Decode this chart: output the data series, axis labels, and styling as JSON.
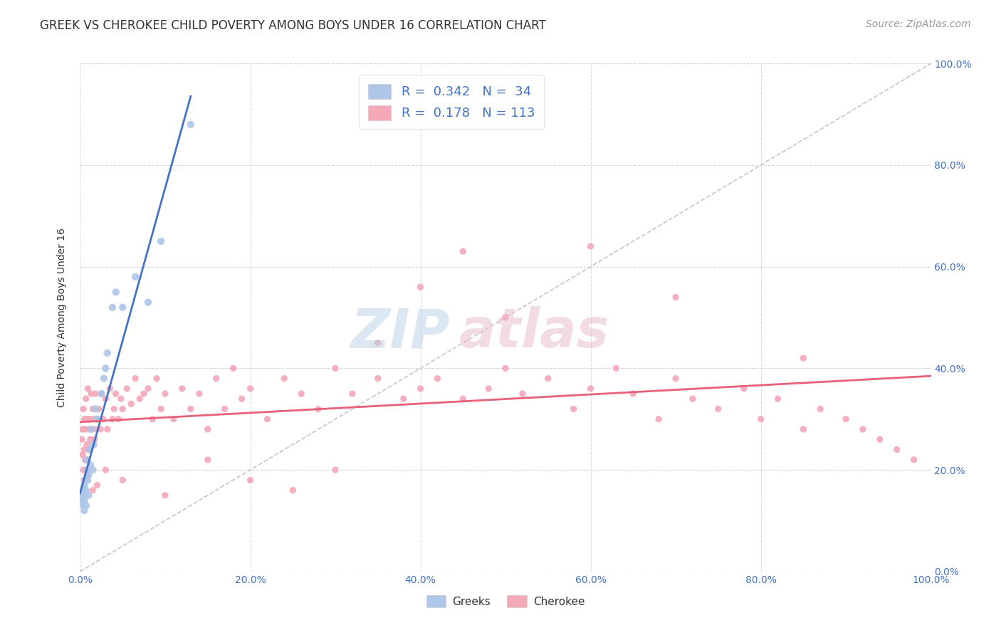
{
  "title": "GREEK VS CHEROKEE CHILD POVERTY AMONG BOYS UNDER 16 CORRELATION CHART",
  "source": "Source: ZipAtlas.com",
  "ylabel": "Child Poverty Among Boys Under 16",
  "xlim": [
    0,
    1.0
  ],
  "ylim": [
    0,
    1.0
  ],
  "tick_vals": [
    0,
    0.2,
    0.4,
    0.6,
    0.8,
    1.0
  ],
  "tick_labels": [
    "0.0%",
    "20.0%",
    "40.0%",
    "60.0%",
    "80.0%",
    "100.0%"
  ],
  "greek_color": "#aec6e8",
  "cherokee_color": "#f4a8b8",
  "greek_line_color": "#4472c4",
  "cherokee_line_color": "#e8607a",
  "diagonal_color": "#c0c0c0",
  "R_greek": 0.342,
  "N_greek": 34,
  "R_cherokee": 0.178,
  "N_cherokee": 113,
  "greek_x": [
    0.002,
    0.003,
    0.004,
    0.004,
    0.005,
    0.005,
    0.005,
    0.006,
    0.006,
    0.007,
    0.007,
    0.008,
    0.008,
    0.009,
    0.01,
    0.01,
    0.011,
    0.012,
    0.013,
    0.015,
    0.016,
    0.018,
    0.02,
    0.025,
    0.028,
    0.03,
    0.032,
    0.038,
    0.042,
    0.05,
    0.065,
    0.08,
    0.095,
    0.13
  ],
  "greek_y": [
    0.14,
    0.15,
    0.13,
    0.16,
    0.12,
    0.14,
    0.17,
    0.15,
    0.18,
    0.13,
    0.16,
    0.2,
    0.22,
    0.18,
    0.15,
    0.19,
    0.24,
    0.21,
    0.28,
    0.2,
    0.25,
    0.32,
    0.3,
    0.35,
    0.38,
    0.4,
    0.43,
    0.52,
    0.55,
    0.52,
    0.58,
    0.53,
    0.65,
    0.88
  ],
  "cherokee_x": [
    0.002,
    0.003,
    0.003,
    0.004,
    0.004,
    0.005,
    0.005,
    0.005,
    0.006,
    0.006,
    0.007,
    0.007,
    0.008,
    0.008,
    0.009,
    0.009,
    0.01,
    0.01,
    0.011,
    0.012,
    0.013,
    0.014,
    0.015,
    0.016,
    0.017,
    0.018,
    0.019,
    0.02,
    0.022,
    0.024,
    0.025,
    0.027,
    0.03,
    0.032,
    0.035,
    0.038,
    0.04,
    0.042,
    0.045,
    0.048,
    0.05,
    0.055,
    0.06,
    0.065,
    0.07,
    0.075,
    0.08,
    0.085,
    0.09,
    0.095,
    0.1,
    0.11,
    0.12,
    0.13,
    0.14,
    0.15,
    0.16,
    0.17,
    0.18,
    0.19,
    0.2,
    0.22,
    0.24,
    0.26,
    0.28,
    0.3,
    0.32,
    0.35,
    0.38,
    0.4,
    0.42,
    0.45,
    0.48,
    0.5,
    0.52,
    0.55,
    0.58,
    0.6,
    0.63,
    0.65,
    0.68,
    0.7,
    0.72,
    0.75,
    0.78,
    0.8,
    0.82,
    0.85,
    0.87,
    0.9,
    0.92,
    0.94,
    0.96,
    0.98,
    0.6,
    0.7,
    0.4,
    0.45,
    0.5,
    0.35,
    0.3,
    0.25,
    0.2,
    0.15,
    0.1,
    0.05,
    0.03,
    0.02,
    0.015,
    0.01,
    0.008,
    0.006,
    0.85
  ],
  "cherokee_y": [
    0.26,
    0.23,
    0.28,
    0.2,
    0.32,
    0.18,
    0.24,
    0.3,
    0.22,
    0.28,
    0.2,
    0.34,
    0.25,
    0.3,
    0.22,
    0.36,
    0.28,
    0.24,
    0.3,
    0.26,
    0.35,
    0.28,
    0.32,
    0.3,
    0.26,
    0.35,
    0.28,
    0.3,
    0.32,
    0.28,
    0.35,
    0.3,
    0.34,
    0.28,
    0.36,
    0.3,
    0.32,
    0.35,
    0.3,
    0.34,
    0.32,
    0.36,
    0.33,
    0.38,
    0.34,
    0.35,
    0.36,
    0.3,
    0.38,
    0.32,
    0.35,
    0.3,
    0.36,
    0.32,
    0.35,
    0.28,
    0.38,
    0.32,
    0.4,
    0.34,
    0.36,
    0.3,
    0.38,
    0.35,
    0.32,
    0.4,
    0.35,
    0.38,
    0.34,
    0.36,
    0.38,
    0.34,
    0.36,
    0.4,
    0.35,
    0.38,
    0.32,
    0.36,
    0.4,
    0.35,
    0.3,
    0.38,
    0.34,
    0.32,
    0.36,
    0.3,
    0.34,
    0.28,
    0.32,
    0.3,
    0.28,
    0.26,
    0.24,
    0.22,
    0.64,
    0.54,
    0.56,
    0.63,
    0.5,
    0.45,
    0.2,
    0.16,
    0.18,
    0.22,
    0.15,
    0.18,
    0.2,
    0.17,
    0.16,
    0.2,
    0.19,
    0.22,
    0.42
  ],
  "title_fontsize": 12,
  "axis_label_fontsize": 10,
  "tick_fontsize": 10,
  "legend_fontsize": 13,
  "source_fontsize": 10,
  "greek_scatter_size": 55,
  "cherokee_scatter_size": 45,
  "background_color": "#ffffff",
  "grid_color": "#d8d8d8"
}
